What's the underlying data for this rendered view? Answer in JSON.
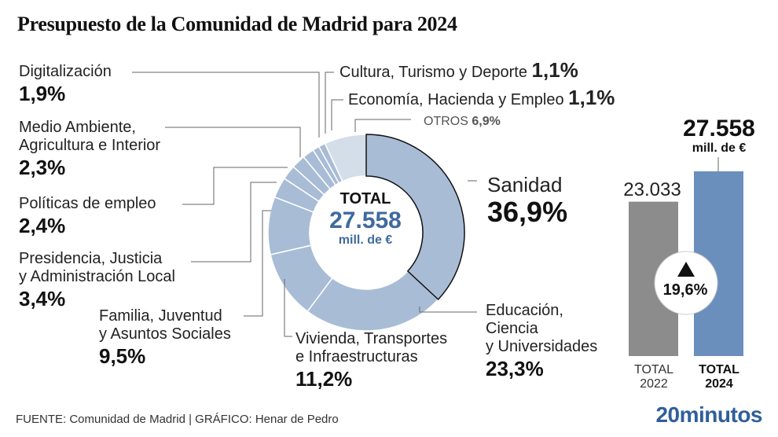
{
  "title": "Presupuesto de la Comunidad de Madrid para 2024",
  "center": {
    "label": "TOTAL",
    "value": "27.558",
    "unit": "mill. de €"
  },
  "labels": {
    "digitalizacion": {
      "name": "Digitalización",
      "pct": "1,9%"
    },
    "medio_ambiente": {
      "name1": "Medio Ambiente,",
      "name2": "Agricultura e Interior",
      "pct": "2,3%"
    },
    "politicas_empleo": {
      "name": "Políticas de empleo",
      "pct": "2,4%"
    },
    "presidencia": {
      "name1": "Presidencia, Justicia",
      "name2": "y Administración Local",
      "pct": "3,4%"
    },
    "familia": {
      "name1": "Familia, Juventud",
      "name2": "y Asuntos Sociales",
      "pct": "9,5%"
    },
    "vivienda": {
      "name1": "Vivienda, Transportes",
      "name2": "e Infraestructuras",
      "pct": "11,2%"
    },
    "educacion": {
      "name1": "Educación,",
      "name2": "Ciencia",
      "name3": "y Universidades",
      "pct": "23,3%"
    },
    "sanidad": {
      "name": "Sanidad",
      "pct": "36,9%"
    },
    "cultura": {
      "name": "Cultura, Turismo y Deporte",
      "pct": "1,1%"
    },
    "economia": {
      "name": "Economía, Hacienda y Empleo",
      "pct": "1,1%"
    },
    "otros": {
      "name": "OTROS",
      "pct": "6,9%"
    }
  },
  "bars": {
    "b2022": {
      "value_label": "23.033",
      "label1": "TOTAL",
      "label2": "2022"
    },
    "b2024": {
      "value_label": "27.558",
      "unit": "mill. de €",
      "label1": "TOTAL",
      "label2": "2024"
    },
    "change": "19,6%"
  },
  "footer": "FUENTE: Comunidad de Madrid  |  GRÁFICO: Henar de Pedro",
  "brand": "20minutos",
  "chart_data": [
    {
      "type": "pie",
      "title": "Presupuesto de la Comunidad de Madrid para 2024",
      "total": 27558,
      "unit": "mill. de €",
      "categories": [
        "Sanidad",
        "Educación, Ciencia y Universidades",
        "Vivienda, Transportes e Infraestructuras",
        "Familia, Juventud y Asuntos Sociales",
        "Presidencia, Justicia y Administración Local",
        "Políticas de empleo",
        "Medio Ambiente, Agricultura e Interior",
        "Digitalización",
        "Cultura, Turismo y Deporte",
        "Economía, Hacienda y Empleo",
        "OTROS"
      ],
      "values": [
        36.9,
        23.3,
        11.2,
        9.5,
        3.4,
        2.4,
        2.3,
        1.9,
        1.1,
        1.1,
        6.9
      ],
      "colors": {
        "main": "#a9bcd6",
        "otros": "#d4dee9",
        "highlight_stroke": "#111111"
      }
    },
    {
      "type": "bar",
      "categories": [
        "TOTAL 2022",
        "TOTAL 2024"
      ],
      "values": [
        23033,
        27558
      ],
      "unit": "mill. de €",
      "change_pct": 19.6,
      "colors": [
        "#8c8c8c",
        "#6b8fbd"
      ]
    }
  ]
}
